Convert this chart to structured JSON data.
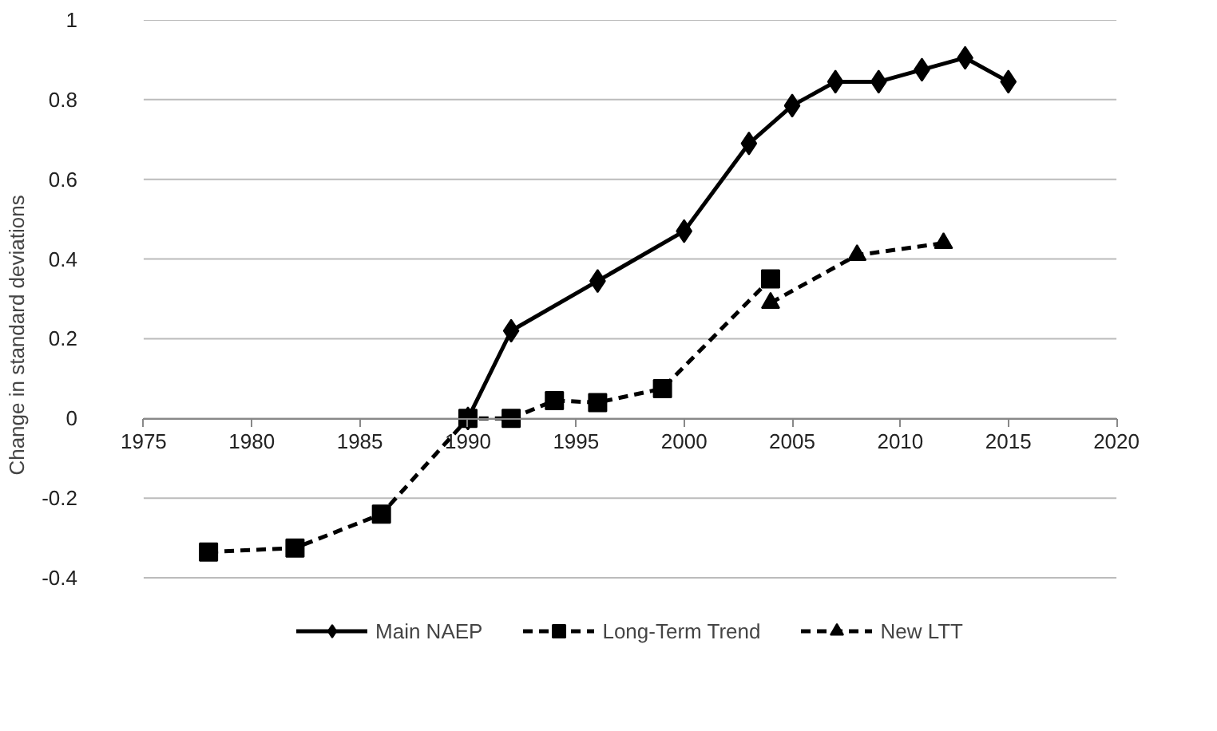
{
  "chart_data": {
    "type": "line",
    "ylabel": "Change in standard deviations",
    "xlim": [
      1975,
      2020
    ],
    "xticks": [
      1975,
      1980,
      1985,
      1990,
      1995,
      2000,
      2005,
      2010,
      2015,
      2020
    ],
    "ylim": [
      -0.4,
      1
    ],
    "yticks": [
      -0.4,
      -0.2,
      0,
      0.2,
      0.4,
      0.6,
      0.8,
      1
    ],
    "grid": "y",
    "legend": "bottom",
    "series": [
      {
        "name": "Main NAEP",
        "color": "#000000",
        "marker": "diamond",
        "line_style": "solid",
        "x": [
          1990,
          1992,
          1996,
          2000,
          2003,
          2005,
          2007,
          2009,
          2011,
          2013,
          2015
        ],
        "values": [
          0,
          0.22,
          0.345,
          0.47,
          0.69,
          0.785,
          0.845,
          0.845,
          0.875,
          0.905,
          0.845
        ]
      },
      {
        "name": "Long-Term Trend",
        "color": "#000000",
        "marker": "square",
        "line_style": "dashed",
        "x": [
          1978,
          1982,
          1986,
          1990,
          1992,
          1994,
          1996,
          1999,
          2004
        ],
        "values": [
          -0.335,
          -0.325,
          -0.24,
          0,
          0,
          0.045,
          0.04,
          0.075,
          0.35
        ]
      },
      {
        "name": "New LTT",
        "color": "#000000",
        "marker": "triangle",
        "line_style": "dashed",
        "x": [
          2004,
          2008,
          2012
        ],
        "values": [
          0.29,
          0.41,
          0.44
        ]
      }
    ]
  }
}
